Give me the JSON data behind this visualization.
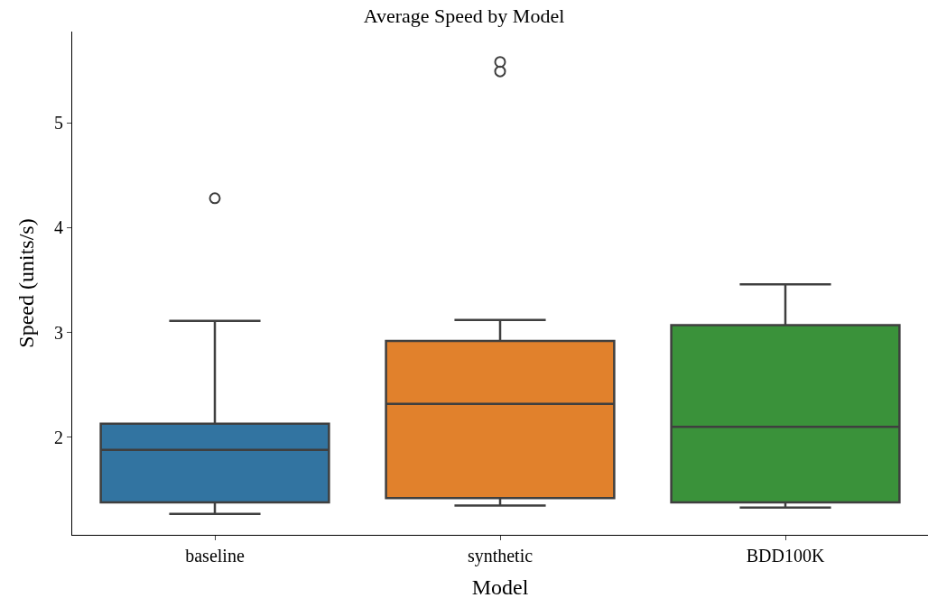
{
  "chart_data": {
    "type": "box",
    "title": "Average Speed by Model",
    "xlabel": "Model",
    "ylabel": "Speed (units/s)",
    "categories": [
      "baseline",
      "synthetic",
      "BDD100K"
    ],
    "colors": [
      "#3274a1",
      "#e1812c",
      "#3a923a"
    ],
    "boxes": [
      {
        "low": 1.27,
        "q1": 1.38,
        "median": 1.88,
        "q3": 2.13,
        "high": 3.11,
        "outliers": [
          4.28
        ]
      },
      {
        "low": 1.35,
        "q1": 1.42,
        "median": 2.32,
        "q3": 2.92,
        "high": 3.12,
        "outliers": [
          5.49,
          5.58
        ]
      },
      {
        "low": 1.33,
        "q1": 1.38,
        "median": 2.1,
        "q3": 3.07,
        "high": 3.46
      }
    ],
    "ylim": [
      1.07,
      5.87
    ],
    "yticks": [
      2,
      3,
      4,
      5
    ]
  }
}
